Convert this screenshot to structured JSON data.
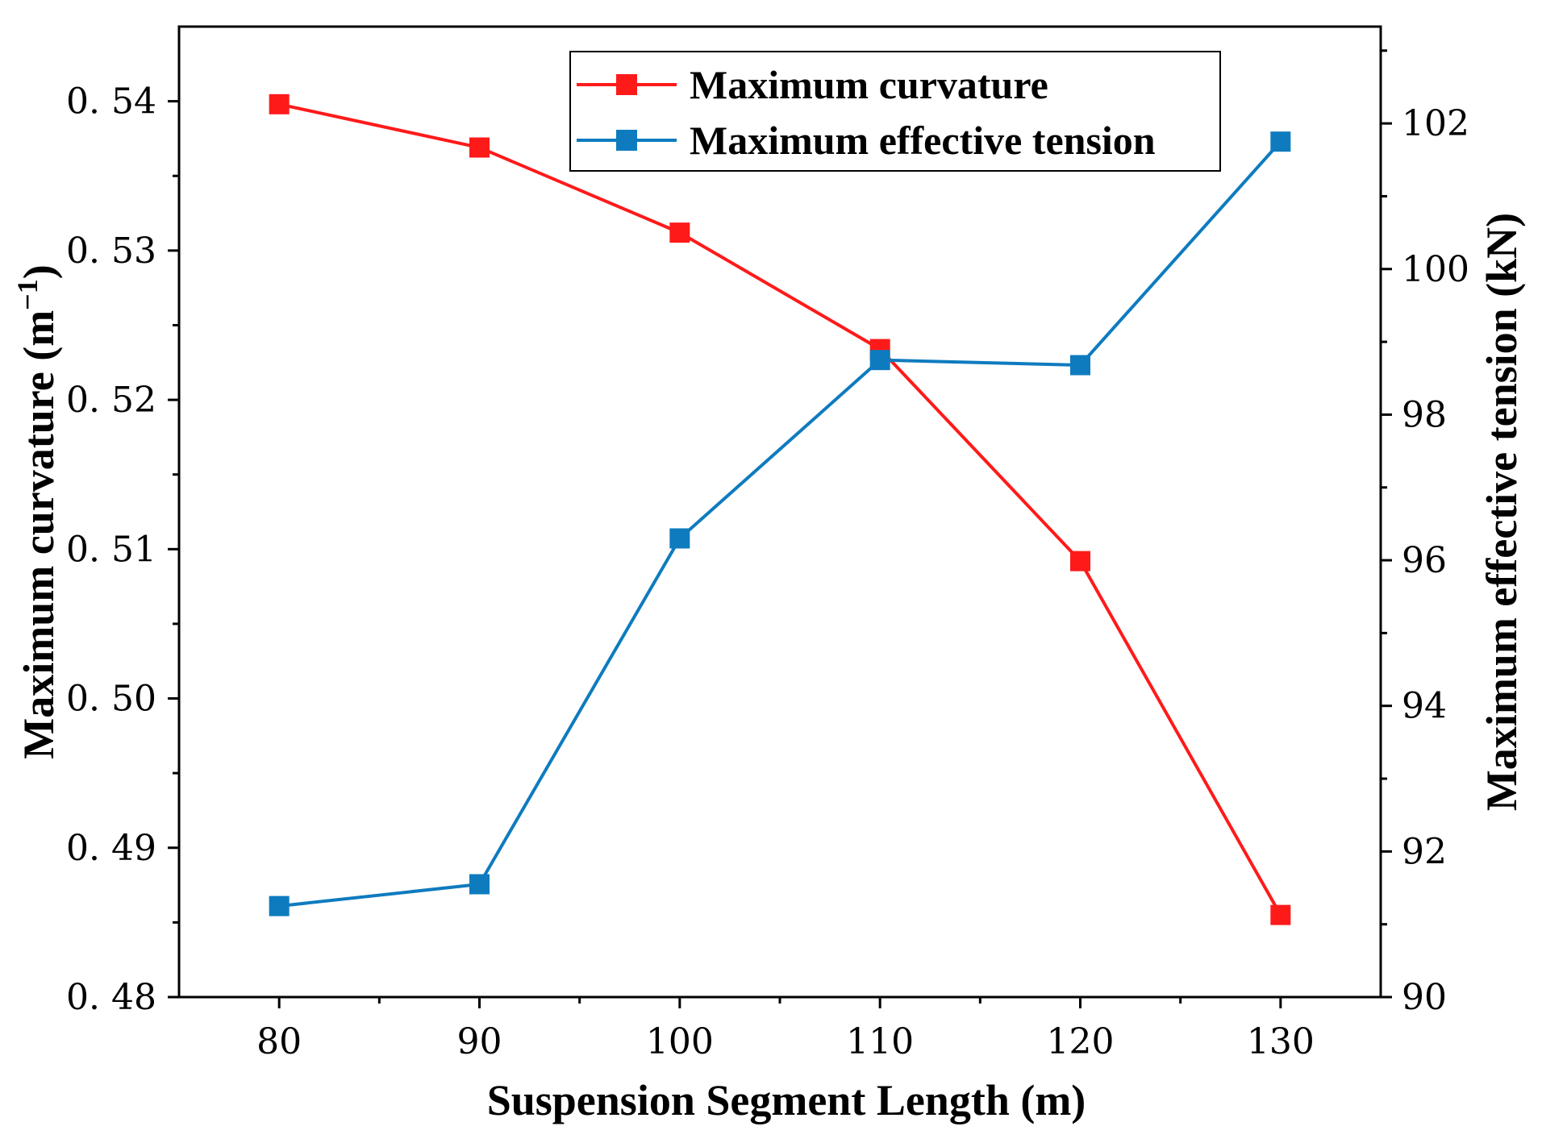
{
  "chart_data": {
    "type": "line",
    "x": [
      80,
      90,
      100,
      110,
      120,
      130
    ],
    "xlabel": "Suspension Segment Length (m)",
    "xlim": [
      75,
      135
    ],
    "xticks": [
      80,
      90,
      100,
      110,
      120,
      130
    ],
    "ylabel_left": "Maximum curvature (m",
    "ylabel_left_superscript": "−1",
    "ylabel_left_close": ")",
    "ylim_left": [
      0.48,
      0.545
    ],
    "yticks_left": [
      0.48,
      0.49,
      0.5,
      0.51,
      0.52,
      0.53,
      0.54
    ],
    "yticklabels_left": [
      "0. 48",
      "0. 49",
      "0. 50",
      "0. 51",
      "0. 52",
      "0. 53",
      "0. 54"
    ],
    "ylabel_right": "Maximum effective tension (kN)",
    "ylim_right": [
      90,
      103.33
    ],
    "yticks_right": [
      90,
      92,
      94,
      96,
      98,
      100,
      102
    ],
    "yticklabels_right": [
      "90",
      "92",
      "94",
      "96",
      "98",
      "100",
      "102"
    ],
    "legend_position": "top-right",
    "grid": false,
    "series": [
      {
        "name": "Maximum curvature",
        "axis": "left",
        "color": "#ff1a1a",
        "values": [
          0.5398,
          0.5369,
          0.5312,
          0.5234,
          0.5092,
          0.4855
        ]
      },
      {
        "name": "Maximum effective tension",
        "axis": "right",
        "color": "#0e7bbf",
        "values": [
          91.25,
          91.55,
          96.3,
          98.75,
          98.68,
          101.75
        ]
      }
    ]
  }
}
